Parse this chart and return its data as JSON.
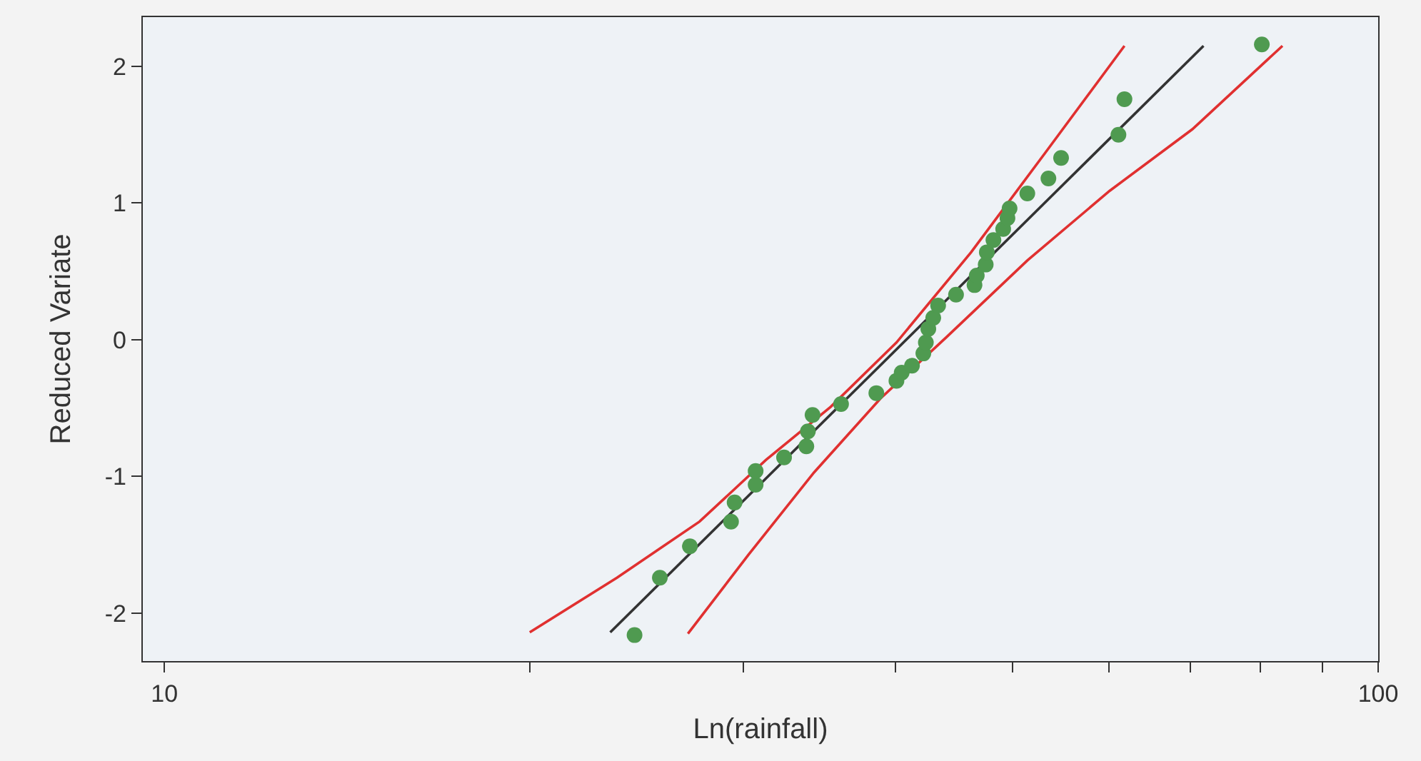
{
  "chart_data": {
    "type": "scatter",
    "xlabel": "Ln(rainfall)",
    "ylabel": "Reduced Variate",
    "log": "x",
    "grid": false,
    "xlim": [
      9.6,
      100
    ],
    "ylim": [
      -2.35,
      2.36
    ],
    "xticks": [
      10,
      {
        "value": 20,
        "label": null
      },
      {
        "value": 30,
        "label": null
      },
      {
        "value": 40,
        "label": null
      },
      {
        "value": 50,
        "label": null
      },
      {
        "value": 60,
        "label": null
      },
      {
        "value": 70,
        "label": null
      },
      {
        "value": 80,
        "label": null
      },
      {
        "value": 90,
        "label": null
      },
      100
    ],
    "yticks": [
      -2,
      -1,
      0,
      1,
      2
    ],
    "series": [
      {
        "marker": "circle",
        "color": "#4f9a50",
        "x": [
          24.4,
          25.6,
          27.1,
          29.3,
          29.5,
          30.7,
          30.7,
          32.4,
          33.8,
          33.9,
          34.2,
          36.1,
          38.6,
          40.1,
          40.5,
          41.3,
          42.2,
          42.4,
          42.6,
          43.0,
          43.4,
          44.9,
          46.5,
          46.7,
          47.5,
          47.6,
          48.2,
          49.1,
          49.5,
          49.7,
          51.4,
          53.5,
          54.8,
          61.1,
          61.8,
          80.2
        ],
        "values": [
          -2.16,
          -1.74,
          -1.51,
          -1.33,
          -1.19,
          -1.06,
          -0.96,
          -0.86,
          -0.78,
          -0.67,
          -0.55,
          -0.47,
          -0.39,
          -0.3,
          -0.24,
          -0.19,
          -0.1,
          -0.02,
          0.08,
          0.16,
          0.25,
          0.33,
          0.4,
          0.47,
          0.55,
          0.64,
          0.73,
          0.81,
          0.89,
          0.96,
          1.07,
          1.18,
          1.33,
          1.5,
          1.76,
          2.16
        ]
      },
      {
        "type": "line",
        "marker": "none",
        "line_style": "solid",
        "color": "#333333",
        "x": [
          23.3,
          71.8
        ],
        "values": [
          -2.14,
          2.15
        ]
      },
      {
        "type": "line",
        "marker": "none",
        "line_style": "solid",
        "color": "#e03030",
        "x": [
          20.0,
          23.6,
          27.6,
          31.3,
          35.4,
          40.1,
          46.2,
          53.1,
          61.8
        ],
        "values": [
          -2.14,
          -1.74,
          -1.33,
          -0.88,
          -0.49,
          -0.02,
          0.64,
          1.36,
          2.15
        ]
      },
      {
        "type": "line",
        "marker": "none",
        "line_style": "solid",
        "color": "#e03030",
        "x": [
          27.0,
          30.3,
          34.3,
          38.9,
          44.1,
          51.4,
          60.1,
          70.3,
          83.4
        ],
        "values": [
          -2.15,
          -1.57,
          -0.97,
          -0.43,
          0.02,
          0.58,
          1.09,
          1.54,
          2.15
        ]
      }
    ]
  }
}
